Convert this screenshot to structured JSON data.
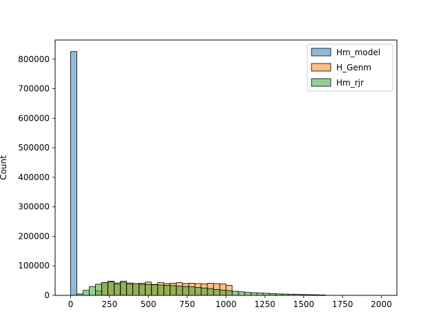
{
  "chart_data": {
    "type": "bar",
    "subtype": "overlaid-histogram",
    "title": "",
    "xlabel": "",
    "ylabel": "Count",
    "xlim": [
      -100,
      2100
    ],
    "ylim": [
      0,
      865000
    ],
    "x_ticks": [
      0,
      250,
      500,
      750,
      1000,
      1250,
      1500,
      1750,
      2000
    ],
    "y_ticks": [
      0,
      100000,
      200000,
      300000,
      400000,
      500000,
      600000,
      700000,
      800000
    ],
    "bin_start": 0,
    "bin_width": 40,
    "grid": false,
    "legend_position": "top-right",
    "series": [
      {
        "name": "Hm_model",
        "color": "#1f77b4",
        "values": [
          826000,
          0,
          0,
          0,
          0,
          0,
          0,
          0,
          0,
          0,
          0,
          0,
          0,
          0,
          0,
          0,
          0,
          0,
          0,
          0,
          0,
          0,
          0,
          0,
          0,
          0,
          0,
          0,
          0,
          0,
          0,
          0,
          0,
          0,
          0,
          0,
          0,
          0,
          0,
          0,
          0,
          0,
          0,
          0,
          0,
          0,
          0,
          0,
          0,
          0
        ]
      },
      {
        "name": "H_Genm",
        "color": "#ff7f0e",
        "values": [
          0,
          0,
          0,
          0,
          15000,
          43000,
          46000,
          42000,
          44000,
          42000,
          40000,
          41000,
          45000,
          37000,
          43000,
          40000,
          41000,
          43000,
          40000,
          41000,
          40000,
          39000,
          41000,
          40000,
          39000,
          34000,
          0,
          0,
          0,
          0,
          0,
          0,
          0,
          0,
          0,
          0,
          0,
          0,
          0,
          0,
          0,
          0,
          0,
          0,
          0,
          0,
          0,
          0,
          0,
          0
        ]
      },
      {
        "name": "Hm_rjr",
        "color": "#2ca02c",
        "values": [
          0,
          5000,
          17000,
          30000,
          38000,
          43000,
          48000,
          38000,
          48000,
          38000,
          40000,
          37000,
          37000,
          36000,
          35000,
          34000,
          33000,
          31000,
          30000,
          29000,
          27000,
          25000,
          23000,
          20000,
          18000,
          16000,
          14000,
          12000,
          10000,
          9000,
          8000,
          7000,
          6000,
          5000,
          4500,
          4000,
          3500,
          3000,
          2500,
          2000,
          1500,
          0,
          0,
          0,
          0,
          0,
          0,
          0,
          0,
          0
        ]
      }
    ]
  }
}
